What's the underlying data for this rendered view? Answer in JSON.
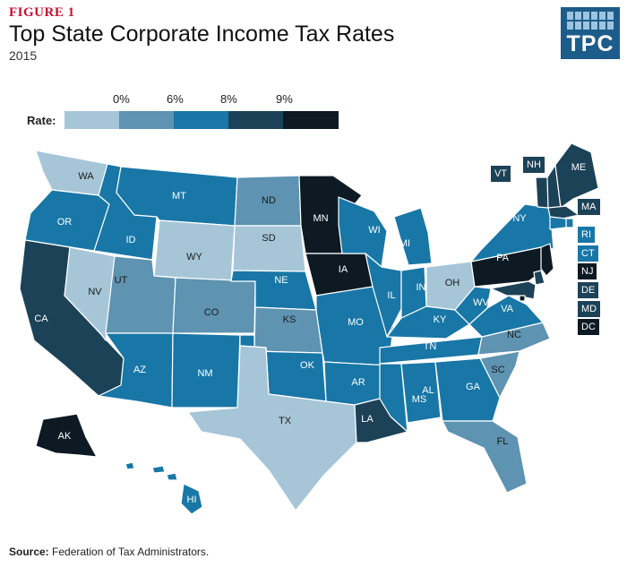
{
  "header": {
    "figure_label": "FIGURE 1",
    "title": "Top State Corporate Income Tax Rates",
    "subtitle": "2015",
    "logo": "TPC"
  },
  "legend": {
    "title": "Rate:",
    "ticks": [
      "0%",
      "6%",
      "8%",
      "9%"
    ],
    "colors": [
      "#a6c6d8",
      "#5e93b1",
      "#1877a6",
      "#1c4257",
      "#0d1a23"
    ]
  },
  "map": {
    "states": {
      "WA": {
        "label": "WA",
        "cls": 0
      },
      "OR": {
        "label": "OR",
        "cls": 2
      },
      "CA": {
        "label": "CA",
        "cls": 3
      },
      "NV": {
        "label": "NV",
        "cls": 0
      },
      "ID": {
        "label": "ID",
        "cls": 2
      },
      "MT": {
        "label": "MT",
        "cls": 2
      },
      "WY": {
        "label": "WY",
        "cls": 0
      },
      "UT": {
        "label": "UT",
        "cls": 1
      },
      "CO": {
        "label": "CO",
        "cls": 1
      },
      "AZ": {
        "label": "AZ",
        "cls": 2
      },
      "NM": {
        "label": "NM",
        "cls": 2
      },
      "ND": {
        "label": "ND",
        "cls": 1
      },
      "SD": {
        "label": "SD",
        "cls": 0
      },
      "NE": {
        "label": "NE",
        "cls": 2
      },
      "KS": {
        "label": "KS",
        "cls": 1
      },
      "OK": {
        "label": "OK",
        "cls": 2
      },
      "TX": {
        "label": "TX",
        "cls": 0
      },
      "MN": {
        "label": "MN",
        "cls": 4
      },
      "IA": {
        "label": "IA",
        "cls": 4
      },
      "MO": {
        "label": "MO",
        "cls": 2
      },
      "AR": {
        "label": "AR",
        "cls": 2
      },
      "LA": {
        "label": "LA",
        "cls": 3
      },
      "WI": {
        "label": "WI",
        "cls": 2
      },
      "IL": {
        "label": "IL",
        "cls": 2
      },
      "MI": {
        "label": "MI",
        "cls": 2
      },
      "IN": {
        "label": "IN",
        "cls": 2
      },
      "OH": {
        "label": "OH",
        "cls": 0
      },
      "KY": {
        "label": "KY",
        "cls": 2
      },
      "TN": {
        "label": "TN",
        "cls": 2
      },
      "MS": {
        "label": "MS",
        "cls": 2
      },
      "AL": {
        "label": "AL",
        "cls": 2
      },
      "GA": {
        "label": "GA",
        "cls": 2
      },
      "FL": {
        "label": "FL",
        "cls": 1
      },
      "SC": {
        "label": "SC",
        "cls": 1
      },
      "NC": {
        "label": "NC",
        "cls": 1
      },
      "VA": {
        "label": "VA",
        "cls": 2
      },
      "WV": {
        "label": "WV",
        "cls": 2
      },
      "PA": {
        "label": "PA",
        "cls": 4
      },
      "NY": {
        "label": "NY",
        "cls": 2
      },
      "ME": {
        "label": "ME",
        "cls": 3
      },
      "VT": {
        "label": "VT",
        "cls": 3
      },
      "NH": {
        "label": "NH",
        "cls": 3
      },
      "MA": {
        "label": "MA",
        "cls": 3
      },
      "RI": {
        "label": "RI",
        "cls": 2
      },
      "CT": {
        "label": "CT",
        "cls": 2
      },
      "NJ": {
        "label": "NJ",
        "cls": 4
      },
      "DE": {
        "label": "DE",
        "cls": 3
      },
      "MD": {
        "label": "MD",
        "cls": 3
      },
      "DC": {
        "label": "DC",
        "cls": 4
      },
      "AK": {
        "label": "AK",
        "cls": 4
      },
      "HI": {
        "label": "HI",
        "cls": 2
      }
    }
  },
  "source": {
    "prefix": "Source:",
    "text": " Federation of Tax Administrators."
  }
}
